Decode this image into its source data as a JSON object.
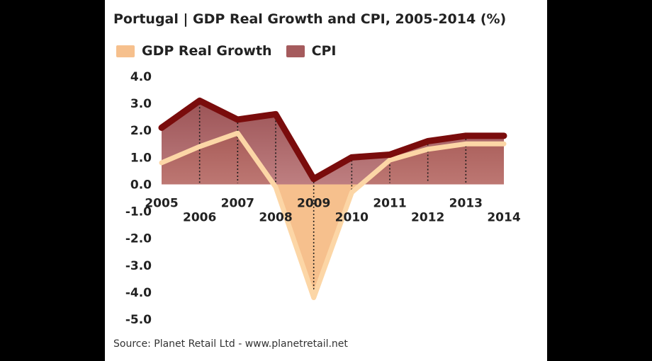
{
  "chart_data": {
    "type": "area",
    "title": "Portugal | GDP Real Growth and CPI, 2005-2014 (%)",
    "x": [
      "2005",
      "2006",
      "2007",
      "2008",
      "2009",
      "2010",
      "2011",
      "2012",
      "2013",
      "2014"
    ],
    "series": [
      {
        "name": "GDP Real Growth",
        "values": [
          0.8,
          1.4,
          1.9,
          -0.1,
          -4.2,
          -0.3,
          0.9,
          1.3,
          1.5,
          1.5
        ]
      },
      {
        "name": "CPI",
        "values": [
          2.1,
          3.1,
          2.4,
          2.6,
          0.2,
          1.0,
          1.1,
          1.6,
          1.8,
          1.8
        ]
      }
    ],
    "y_ticks": [
      "4.0",
      "3.0",
      "2.0",
      "1.0",
      "0.0",
      "-1.0",
      "-2.0",
      "-3.0",
      "-4.0",
      "-5.0"
    ],
    "ylim": [
      -5,
      4
    ],
    "legend": "top-left",
    "source": "Source: Planet Retail Ltd - www.planetretail.net",
    "colors": {
      "gdp_fill": "#f6c08d",
      "gdp_line": "#fcd6a6",
      "cpi_fill": "#a55b5d",
      "cpi_line": "#7a0c0c",
      "panel_bg": "#ffffff",
      "outer_bg": "#000000"
    }
  }
}
